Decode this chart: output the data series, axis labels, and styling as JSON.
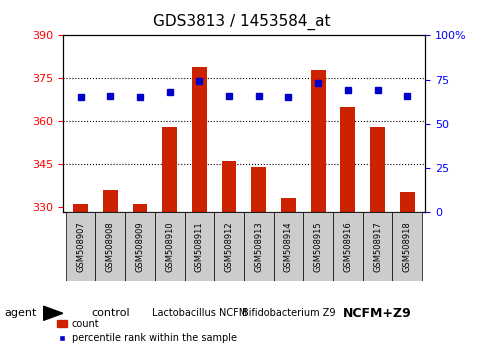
{
  "title": "GDS3813 / 1453584_at",
  "samples": [
    "GSM508907",
    "GSM508908",
    "GSM508909",
    "GSM508910",
    "GSM508911",
    "GSM508912",
    "GSM508913",
    "GSM508914",
    "GSM508915",
    "GSM508916",
    "GSM508917",
    "GSM508918"
  ],
  "counts": [
    331,
    336,
    331,
    358,
    379,
    346,
    344,
    333,
    378,
    365,
    358,
    335
  ],
  "percentiles": [
    65,
    66,
    65,
    68,
    74,
    66,
    66,
    65,
    73,
    69,
    69,
    66
  ],
  "ylim_left": [
    328,
    390
  ],
  "ylim_right": [
    0,
    100
  ],
  "yticks_left": [
    330,
    345,
    360,
    375,
    390
  ],
  "yticks_right": [
    0,
    25,
    50,
    75,
    100
  ],
  "group_labels": [
    "control",
    "Lactobacillus NCFM",
    "Bifidobacterium Z9",
    "NCFM+Z9"
  ],
  "group_ranges": [
    [
      0,
      2
    ],
    [
      3,
      5
    ],
    [
      6,
      8
    ],
    [
      9,
      11
    ]
  ],
  "group_colors": [
    "#ccffcc",
    "#99ff99",
    "#99ff99",
    "#33dd33"
  ],
  "group_fontsizes": [
    8,
    7,
    7,
    9
  ],
  "group_fontweights": [
    "normal",
    "normal",
    "normal",
    "bold"
  ],
  "bar_color": "#cc2200",
  "dot_color": "#0000cc",
  "bar_bottom": 328,
  "agent_label": "agent",
  "legend_count_label": "count",
  "legend_percentile_label": "percentile rank within the sample",
  "title_fontsize": 11,
  "tick_fontsize": 8,
  "sample_fontsize": 6
}
